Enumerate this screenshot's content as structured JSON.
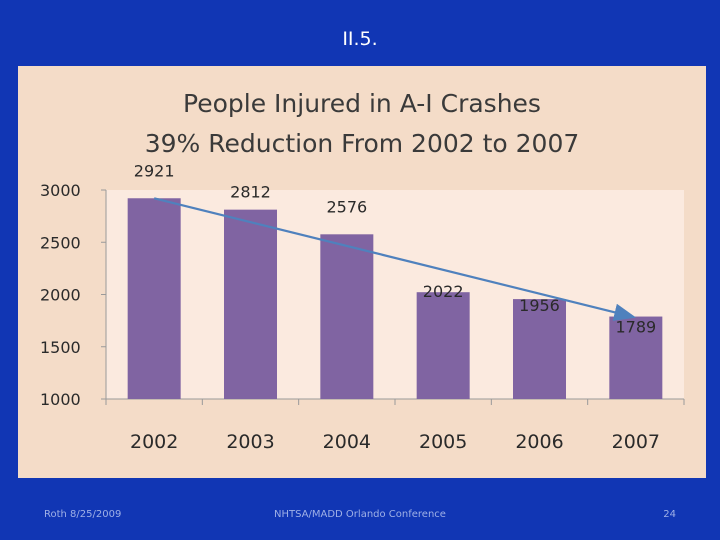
{
  "slide": {
    "number_label": "II.5.",
    "footer_left": "Roth 8/25/2009",
    "footer_center": "NHTSA/MADD Orlando Conference",
    "footer_right": "24"
  },
  "colors": {
    "background": "#1136b4",
    "panel": "#f4dcc8",
    "plot_area": "#fbeadf",
    "bar": "#8064a2",
    "trend_line": "#4f81bd"
  },
  "chart_data": {
    "type": "bar",
    "title": "People Injured in A-I Crashes",
    "subtitle": "39% Reduction From 2002 to 2007",
    "xlabel": "",
    "ylabel": "",
    "categories": [
      "2002",
      "2003",
      "2004",
      "2005",
      "2006",
      "2007"
    ],
    "values": [
      2921,
      2812,
      2576,
      2022,
      1956,
      1789
    ],
    "data_labels": [
      "2921",
      "2812",
      "2576",
      "2022",
      "1956",
      "1789"
    ],
    "ylim": [
      1000,
      3000
    ],
    "yticks": [
      1000,
      1500,
      2000,
      2500,
      3000
    ],
    "ytick_labels": [
      "1000",
      "1500",
      "2000",
      "2500",
      "3000"
    ],
    "grid": false,
    "trend_line": {
      "from": "2002",
      "to": "2007",
      "arrow": true
    }
  }
}
